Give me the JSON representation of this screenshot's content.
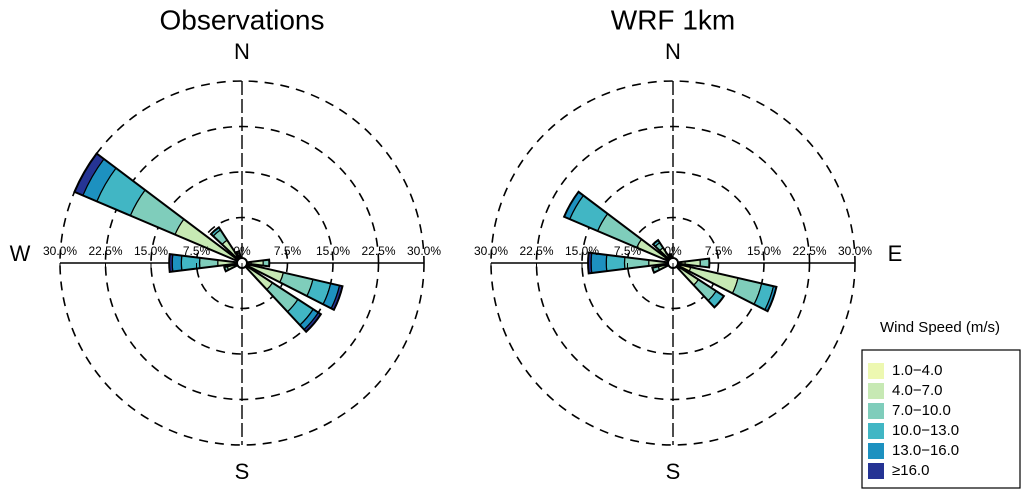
{
  "chart_data": [
    {
      "type": "windrose",
      "title": "Observations",
      "compass": [
        {
          "angle": 0,
          "label": "N"
        },
        {
          "angle": 270,
          "label": "W"
        },
        {
          "angle": 180,
          "label": "S"
        }
      ],
      "directions": [
        90,
        110,
        130,
        250,
        270,
        300,
        320,
        340
      ],
      "rlim": [
        0,
        30
      ],
      "rticks": [
        {
          "value": 0,
          "label": "0%"
        },
        {
          "value": 7.5,
          "label": "7.5%"
        },
        {
          "value": 15,
          "label": "15.0%"
        },
        {
          "value": 22.5,
          "label": "22.5%"
        },
        {
          "value": 30,
          "label": "30.0%"
        }
      ],
      "series": [
        {
          "name": "1.0−4.0",
          "color": "#edf8b1",
          "values": [
            1.5,
            1,
            1,
            1,
            1,
            1,
            1.5,
            1
          ]
        },
        {
          "name": "4.0−7.0",
          "color": "#c7e9b4",
          "values": [
            2,
            6,
            5,
            1.5,
            3,
            11,
            3,
            1
          ]
        },
        {
          "name": "7.0−10.0",
          "color": "#7fcdbb",
          "values": [
            1,
            5,
            5,
            0.5,
            3,
            8,
            2,
            0
          ]
        },
        {
          "name": "10.0−13.0",
          "color": "#41b6c4",
          "values": [
            0,
            3,
            3,
            0,
            3,
            6,
            0.5,
            0
          ]
        },
        {
          "name": "13.0−16.0",
          "color": "#1d91c0",
          "values": [
            0,
            1.5,
            1,
            0,
            1.5,
            2.5,
            0,
            0
          ]
        },
        {
          "name": "≥16.0",
          "color": "#253494",
          "values": [
            0,
            0.5,
            0.5,
            0,
            0.5,
            1.5,
            0,
            0
          ]
        }
      ]
    },
    {
      "type": "windrose",
      "title": "WRF 1km",
      "compass": [
        {
          "angle": 0,
          "label": "N"
        },
        {
          "angle": 90,
          "label": "E"
        },
        {
          "angle": 180,
          "label": "S"
        }
      ],
      "directions": [
        90,
        110,
        130,
        250,
        270,
        300,
        320,
        340
      ],
      "rlim": [
        0,
        30
      ],
      "rticks": [
        {
          "value": 0,
          "label": "0%"
        },
        {
          "value": 7.5,
          "label": "7.5%"
        },
        {
          "value": 15,
          "label": "15.0%"
        },
        {
          "value": 22.5,
          "label": "22.5%"
        },
        {
          "value": 30,
          "label": "30.0%"
        }
      ],
      "series": [
        {
          "name": "1.0−4.0",
          "color": "#edf8b1",
          "values": [
            2,
            3,
            1.5,
            1,
            1,
            1.5,
            1,
            1
          ]
        },
        {
          "name": "4.0−7.0",
          "color": "#c7e9b4",
          "values": [
            2.5,
            8,
            3.5,
            1.5,
            3,
            5,
            2,
            0.5
          ]
        },
        {
          "name": "7.0−10.0",
          "color": "#7fcdbb",
          "values": [
            1.5,
            4,
            3.5,
            1,
            4,
            7,
            1,
            0
          ]
        },
        {
          "name": "10.0−13.0",
          "color": "#41b6c4",
          "values": [
            0,
            2,
            1.5,
            0,
            3,
            5,
            0.5,
            0
          ]
        },
        {
          "name": "13.0−16.0",
          "color": "#1d91c0",
          "values": [
            0,
            0.5,
            0,
            0,
            2.5,
            1,
            0,
            0
          ]
        },
        {
          "name": "≥16.0",
          "color": "#253494",
          "values": [
            0,
            0,
            0,
            0,
            0.5,
            0,
            0,
            0
          ]
        }
      ]
    }
  ],
  "legend_title": "Wind Speed (m/s)"
}
